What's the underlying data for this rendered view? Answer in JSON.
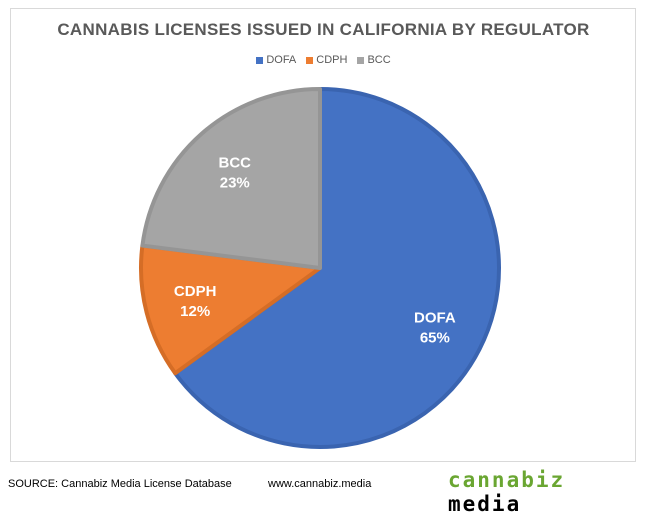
{
  "chart_data": {
    "type": "pie",
    "title": "CANNABIS LICENSES ISSUED IN CALIFORNIA BY REGULATOR",
    "categories": [
      "DOFA",
      "CDPH",
      "BCC"
    ],
    "values": [
      65,
      12,
      23
    ],
    "labels": [
      "65%",
      "12%",
      "23%"
    ],
    "colors": [
      "#4472c4",
      "#ed7d31",
      "#a5a5a5"
    ],
    "legend": "top"
  },
  "footer": {
    "source": "SOURCE: Cannabiz Media License Database",
    "url": "www.cannabiz.media",
    "logo_part1": "cannabiz",
    "logo_part2": "media",
    "logo_colors": [
      "#6aa632",
      "#000000"
    ]
  }
}
